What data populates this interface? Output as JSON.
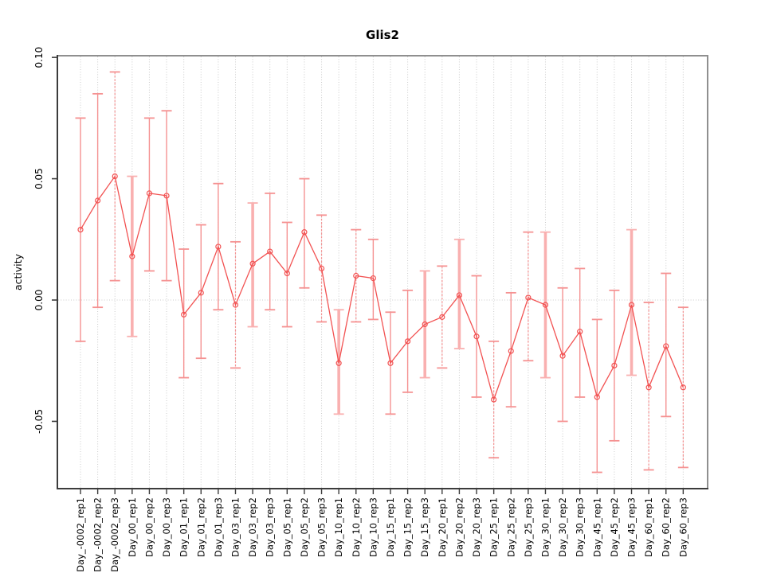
{
  "chart_data": {
    "type": "line",
    "title": "Glis2",
    "xlabel": "",
    "ylabel": "activity",
    "ylim": [
      -0.0774,
      0.1007
    ],
    "yticks": {
      "values": [
        0.1,
        0.05,
        0.0,
        -0.05
      ],
      "labels": [
        "0.10",
        "0.05",
        "0.00",
        "-0.05"
      ]
    },
    "grid": {
      "vertical": "dotted line at every category",
      "horizontal": "dotted line at y=0 only"
    },
    "legend": "none",
    "marker": "open-circle",
    "categories": [
      "Day_-0002_rep1",
      "Day_-0002_rep2",
      "Day_-0002_rep3",
      "Day_00_rep1",
      "Day_00_rep2",
      "Day_00_rep3",
      "Day_01_rep1",
      "Day_01_rep2",
      "Day_01_rep3",
      "Day_03_rep1",
      "Day_03_rep2",
      "Day_03_rep3",
      "Day_05_rep1",
      "Day_05_rep2",
      "Day_05_rep3",
      "Day_10_rep1",
      "Day_10_rep2",
      "Day_10_rep3",
      "Day_15_rep1",
      "Day_15_rep2",
      "Day_15_rep3",
      "Day_20_rep1",
      "Day_20_rep2",
      "Day_20_rep3",
      "Day_25_rep1",
      "Day_25_rep2",
      "Day_25_rep3",
      "Day_30_rep1",
      "Day_30_rep2",
      "Day_30_rep3",
      "Day_45_rep1",
      "Day_45_rep2",
      "Day_45_rep3",
      "Day_60_rep1",
      "Day_60_rep2",
      "Day_60_rep3"
    ],
    "series": [
      {
        "name": "activity",
        "values": [
          0.029,
          0.041,
          0.051,
          0.018,
          0.044,
          0.043,
          -0.006,
          0.003,
          0.022,
          -0.002,
          0.015,
          0.02,
          0.011,
          0.028,
          0.013,
          -0.026,
          0.01,
          0.009,
          -0.026,
          -0.017,
          -0.01,
          -0.007,
          0.002,
          -0.015,
          -0.041,
          -0.021,
          0.001,
          -0.002,
          -0.023,
          -0.013,
          -0.04,
          -0.027,
          -0.002,
          -0.036,
          -0.019,
          -0.036
        ],
        "error_high": [
          0.075,
          0.085,
          0.094,
          0.051,
          0.075,
          0.078,
          0.021,
          0.031,
          0.048,
          0.024,
          0.04,
          0.044,
          0.032,
          0.05,
          0.035,
          -0.004,
          0.029,
          0.025,
          -0.005,
          0.004,
          0.012,
          0.014,
          0.025,
          0.01,
          -0.017,
          0.003,
          0.028,
          0.028,
          0.005,
          0.013,
          -0.008,
          0.004,
          0.029,
          -0.001,
          0.011,
          -0.003
        ],
        "error_low": [
          -0.017,
          -0.003,
          0.008,
          -0.015,
          0.012,
          0.008,
          -0.032,
          -0.024,
          -0.004,
          -0.028,
          -0.011,
          -0.004,
          -0.011,
          0.005,
          -0.009,
          -0.047,
          -0.009,
          -0.008,
          -0.047,
          -0.038,
          -0.032,
          -0.028,
          -0.02,
          -0.04,
          -0.065,
          -0.044,
          -0.025,
          -0.032,
          -0.05,
          -0.04,
          -0.071,
          -0.058,
          -0.031,
          -0.07,
          -0.048,
          -0.069
        ]
      }
    ],
    "thick_errorbar_indices": [
      3,
      10,
      15,
      20,
      22,
      27,
      32
    ],
    "dashed_errorbar_indices": [
      2,
      9,
      14,
      16,
      21,
      24,
      26,
      33,
      35
    ]
  },
  "colors": {
    "series": "#f25252",
    "errorbar": "#f59292",
    "errorbar_thick": "#f9b0b0",
    "grid": "#cbcbcb",
    "axis_dark": "#3c3c3c",
    "box_light": "#8f8f8f",
    "text": "#000000",
    "background": "#ffffff"
  }
}
